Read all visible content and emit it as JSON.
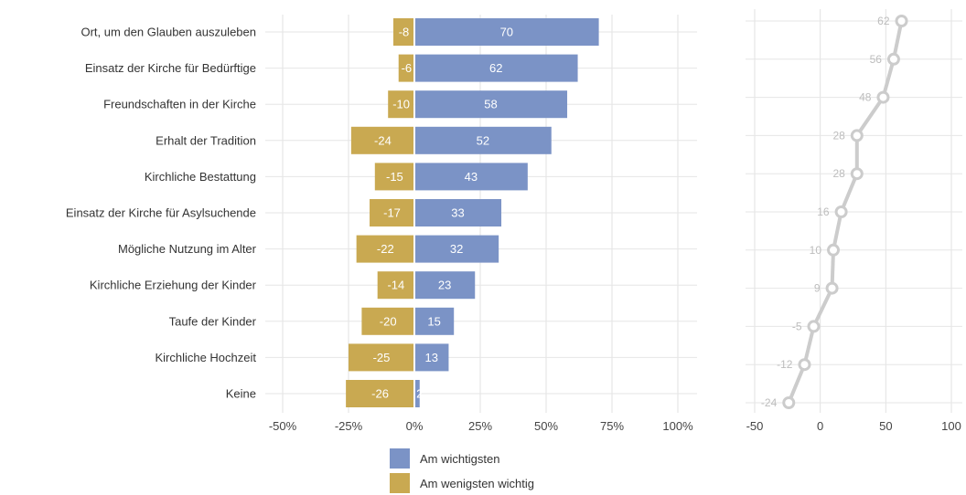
{
  "chart_data": [
    {
      "type": "bar",
      "orientation": "horizontal",
      "stacked": "diverging",
      "categories": [
        "Ort, um den Glauben auszuleben",
        "Einsatz der Kirche für Bedürftige",
        "Freundschaften in der Kirche",
        "Erhalt der Tradition",
        "Kirchliche Bestattung",
        "Einsatz der Kirche für Asylsuchende",
        "Mögliche Nutzung im Alter",
        "Kirchliche Erziehung der Kinder",
        "Taufe der Kinder",
        "Kirchliche Hochzeit",
        "Keine"
      ],
      "series": [
        {
          "name": "Am wichtigsten",
          "color": "#7b93c6",
          "values": [
            70,
            62,
            58,
            52,
            43,
            33,
            32,
            23,
            15,
            13,
            2
          ],
          "labels": [
            "70",
            "62",
            "58",
            "52",
            "43",
            "33",
            "32",
            "23",
            "15",
            "13",
            "2"
          ]
        },
        {
          "name": "Am wenigsten wichtig",
          "color": "#c9a951",
          "values": [
            -8,
            -6,
            -10,
            -24,
            -15,
            -17,
            -22,
            -14,
            -20,
            -25,
            -26
          ],
          "labels": [
            "-8",
            "-6",
            "-10",
            "-24",
            "-15",
            "-17",
            "-22",
            "-14",
            "-20",
            "-25",
            "-26"
          ]
        }
      ],
      "xlim": [
        -50,
        100
      ],
      "xticks": [
        -50,
        -25,
        0,
        25,
        50,
        75,
        100
      ],
      "xtick_labels": [
        "-50%",
        "-25%",
        "0%",
        "25%",
        "50%",
        "75%",
        "100%"
      ],
      "grid": true,
      "legend_position": "bottom"
    },
    {
      "type": "line",
      "values": [
        62,
        56,
        48,
        28,
        28,
        16,
        10,
        9,
        -5,
        -12,
        -24
      ],
      "labels": [
        "62",
        "56",
        "48",
        "28",
        "28",
        "16",
        "10",
        "9",
        "-5",
        "-12",
        "-24"
      ],
      "color": "#cccccc",
      "xlim": [
        -50,
        100
      ],
      "xticks": [
        -50,
        0,
        50,
        100
      ],
      "xtick_labels": [
        "-50",
        "0",
        "50",
        "100"
      ],
      "grid": true
    }
  ]
}
